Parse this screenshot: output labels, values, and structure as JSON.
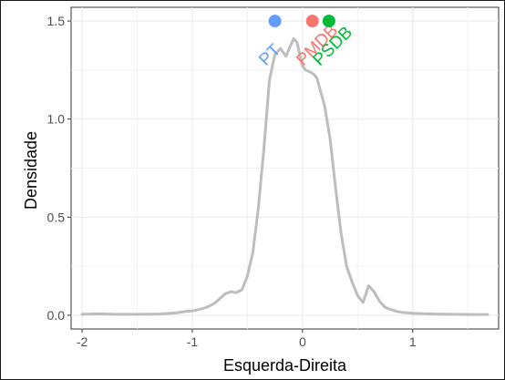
{
  "chart_data": {
    "type": "area",
    "xlabel": "Esquerda-Direita",
    "ylabel": "Densidade",
    "xlim": [
      -2.1,
      1.78
    ],
    "ylim": [
      -0.07,
      1.57
    ],
    "x_ticks": [
      -2,
      -1,
      0,
      1
    ],
    "y_ticks": [
      0.0,
      0.5,
      1.0,
      1.5
    ],
    "grid": true,
    "colors": {
      "curve": "#bdbdbd"
    },
    "density": {
      "x": [
        -2.0,
        -1.85,
        -1.7,
        -1.5,
        -1.3,
        -1.15,
        -1.05,
        -1.0,
        -0.95,
        -0.9,
        -0.85,
        -0.8,
        -0.75,
        -0.7,
        -0.65,
        -0.6,
        -0.55,
        -0.5,
        -0.45,
        -0.4,
        -0.35,
        -0.3,
        -0.25,
        -0.2,
        -0.15,
        -0.12,
        -0.08,
        -0.05,
        -0.02,
        0.0,
        0.03,
        0.07,
        0.1,
        0.13,
        0.15,
        0.2,
        0.25,
        0.3,
        0.35,
        0.4,
        0.45,
        0.5,
        0.55,
        0.6,
        0.65,
        0.7,
        0.75,
        0.8,
        0.85,
        0.9,
        1.0,
        1.1,
        1.2,
        1.35,
        1.5,
        1.6,
        1.68
      ],
      "y": [
        0.005,
        0.007,
        0.005,
        0.005,
        0.006,
        0.012,
        0.02,
        0.022,
        0.028,
        0.035,
        0.045,
        0.06,
        0.085,
        0.11,
        0.12,
        0.115,
        0.13,
        0.2,
        0.32,
        0.55,
        0.85,
        1.2,
        1.33,
        1.36,
        1.32,
        1.36,
        1.41,
        1.39,
        1.32,
        1.27,
        1.25,
        1.24,
        1.23,
        1.21,
        1.17,
        1.07,
        0.9,
        0.65,
        0.42,
        0.25,
        0.17,
        0.1,
        0.065,
        0.15,
        0.12,
        0.07,
        0.04,
        0.03,
        0.02,
        0.015,
        0.01,
        0.008,
        0.006,
        0.005,
        0.004,
        0.004,
        0.004
      ]
    },
    "parties": [
      {
        "name": "PT",
        "x": -0.25,
        "y": 1.5,
        "color": "#619cff"
      },
      {
        "name": "PMDB",
        "x": 0.09,
        "y": 1.5,
        "color": "#f8766d"
      },
      {
        "name": "PSDB",
        "x": 0.24,
        "y": 1.5,
        "color": "#00ba38"
      }
    ]
  }
}
